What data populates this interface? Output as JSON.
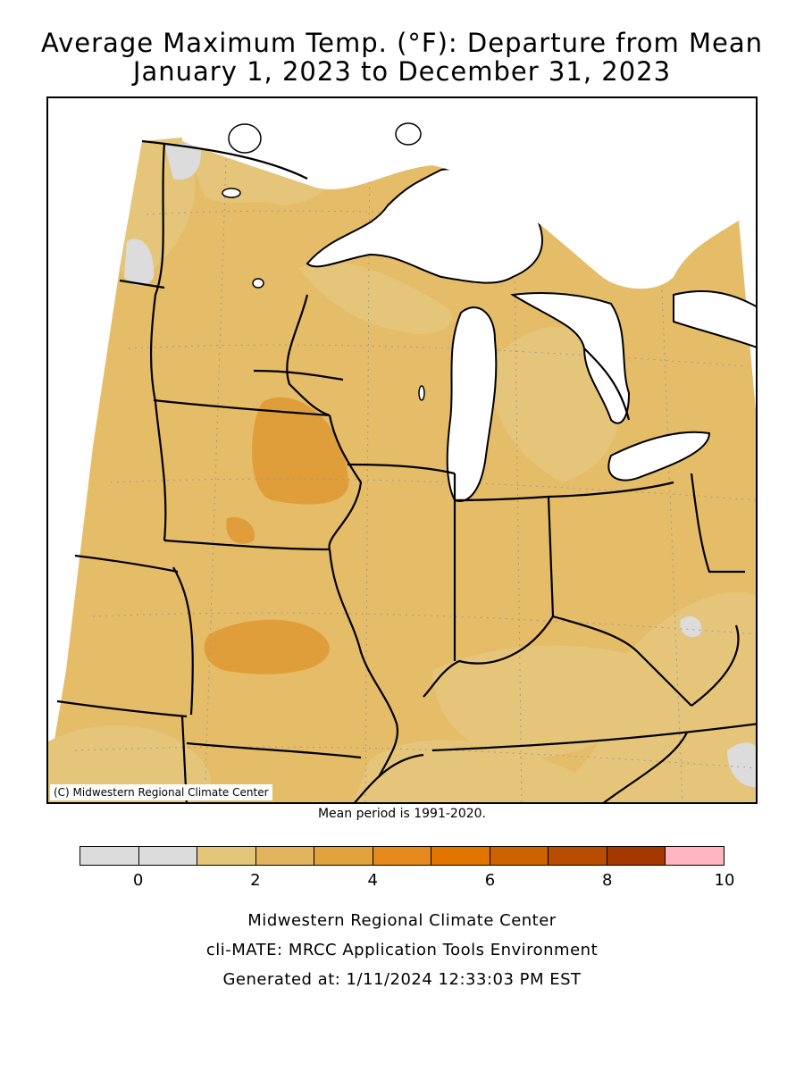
{
  "title": {
    "line1": "Average Maximum Temp. (°F): Departure from Mean",
    "line2": "January 1, 2023 to December 31, 2023"
  },
  "map": {
    "copyright": "(C) Midwestern Regional Climate Center",
    "mean_period": "Mean period is 1991-2020.",
    "colors": {
      "background_fill": "#e8c374",
      "band_1_2": "#e4c57a",
      "band_2_3": "#e2b45e",
      "band_3_4": "#e09e3a",
      "band_0_1": "#dcdcdc",
      "water": "#ffffff",
      "border": "#000000"
    }
  },
  "legend": {
    "colors": [
      "#dcdcdc",
      "#dcdcdc",
      "#e4c57a",
      "#e2b45e",
      "#e2a23e",
      "#e68a1e",
      "#e27400",
      "#cc6200",
      "#b84c00",
      "#a43800",
      "#ffb4c0"
    ],
    "tick_labels": [
      "0",
      "2",
      "4",
      "6",
      "8",
      "10"
    ],
    "tick_values": [
      0,
      2,
      4,
      6,
      8,
      10
    ],
    "range": [
      -1,
      10
    ]
  },
  "credits": {
    "line1": "Midwestern Regional Climate Center",
    "line2": "cli-MATE: MRCC Application Tools Environment",
    "line3": "Generated at: 1/11/2024 12:33:03 PM EST"
  }
}
